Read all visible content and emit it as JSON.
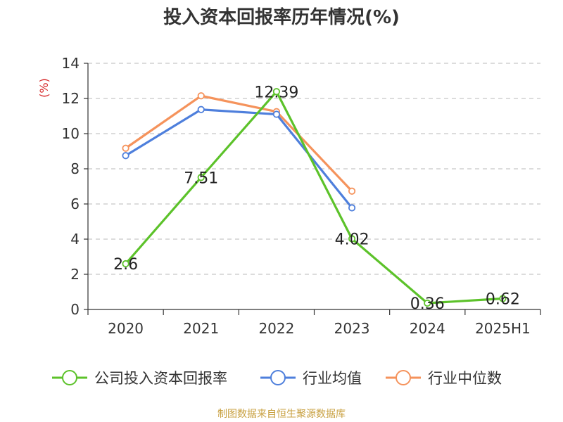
{
  "chart_data": {
    "type": "line",
    "title": "投入资本回报率历年情况(%)",
    "ylabel": "(%)",
    "xlabel": "",
    "categories": [
      "2020",
      "2021",
      "2022",
      "2023",
      "2024",
      "2025H1"
    ],
    "ylim": [
      0,
      14
    ],
    "yticks": [
      0,
      2,
      4,
      6,
      8,
      10,
      12,
      14
    ],
    "grid": true,
    "legend_position": "bottom",
    "series": [
      {
        "name": "公司投入资本回报率",
        "color": "#5cc22a",
        "values": [
          2.6,
          7.51,
          12.39,
          4.02,
          0.36,
          0.62
        ],
        "labels": [
          "2.6",
          "7.51",
          "12.39",
          "4.02",
          "0.36",
          "0.62"
        ]
      },
      {
        "name": "行业均值",
        "color": "#4e7fdc",
        "values": [
          8.75,
          11.37,
          11.1,
          5.78,
          null,
          null
        ]
      },
      {
        "name": "行业中位数",
        "color": "#f5935c",
        "values": [
          9.17,
          12.15,
          11.25,
          6.73,
          null,
          null
        ]
      }
    ]
  },
  "source": "制图数据来自恒生聚源数据库"
}
